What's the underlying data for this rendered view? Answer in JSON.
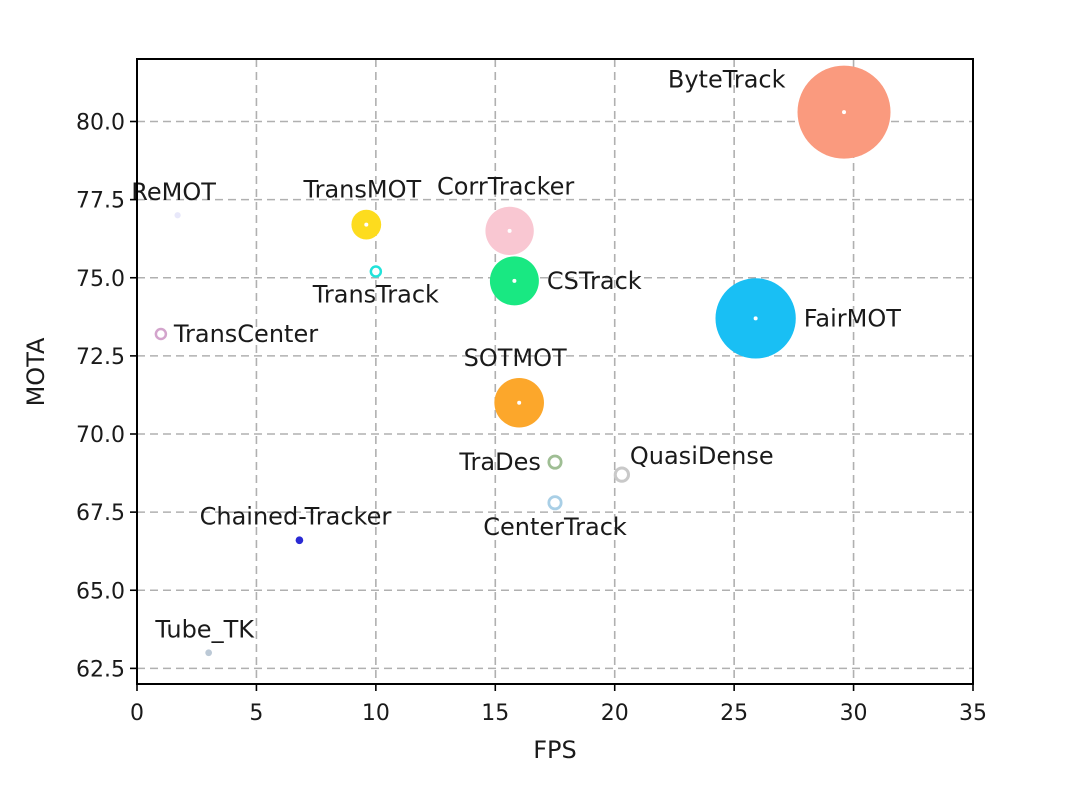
{
  "chart_data": {
    "type": "scatter",
    "xlabel": "FPS",
    "ylabel": "MOTA",
    "xlim": [
      0,
      35
    ],
    "ylim": [
      62.0,
      82.0
    ],
    "x_ticks": [
      "0",
      "5",
      "10",
      "15",
      "20",
      "25",
      "30",
      "35"
    ],
    "y_ticks": [
      "62.5",
      "65.0",
      "67.5",
      "70.0",
      "72.5",
      "75.0",
      "77.5",
      "80.0"
    ],
    "grid": true,
    "points": [
      {
        "name": "ByteTrack",
        "x": 29.6,
        "y": 80.3,
        "size": 30,
        "color": "#fa9a7e",
        "ring": false,
        "label_pos": "upper-left"
      },
      {
        "name": "ReMOT",
        "x": 1.7,
        "y": 77.0,
        "size": 1,
        "color": "#e8e8fa",
        "ring": false,
        "label_pos": "above"
      },
      {
        "name": "TransMOT",
        "x": 9.6,
        "y": 76.7,
        "size": 9.6,
        "color": "#fddc1e",
        "ring": false,
        "label_pos": "above"
      },
      {
        "name": "CorrTracker",
        "x": 15.6,
        "y": 76.5,
        "size": 15.6,
        "color": "#f9c7d2",
        "ring": false,
        "label_pos": "above"
      },
      {
        "name": "TransTrack",
        "x": 10.0,
        "y": 75.2,
        "size": 10,
        "color": "#21e3da",
        "ring": true,
        "label_pos": "below"
      },
      {
        "name": "CSTrack",
        "x": 15.8,
        "y": 74.9,
        "size": 15.8,
        "color": "#19e882",
        "ring": false,
        "label_pos": "right"
      },
      {
        "name": "FairMOT",
        "x": 25.9,
        "y": 73.7,
        "size": 25.9,
        "color": "#19bff4",
        "ring": false,
        "label_pos": "right"
      },
      {
        "name": "TransCenter",
        "x": 1.0,
        "y": 73.2,
        "size": 1,
        "color": "#d3a4cc",
        "ring": true,
        "label_pos": "right"
      },
      {
        "name": "SOTMOT",
        "x": 16.0,
        "y": 71.0,
        "size": 16,
        "color": "#fca72b",
        "ring": false,
        "label_pos": "above"
      },
      {
        "name": "TraDes",
        "x": 17.5,
        "y": 69.1,
        "size": 17.5,
        "color": "#9fbe94",
        "ring": true,
        "label_pos": "left"
      },
      {
        "name": "QuasiDense",
        "x": 20.3,
        "y": 68.7,
        "size": 20.3,
        "color": "#c9c9c9",
        "ring": true,
        "label_pos": "upper-right"
      },
      {
        "name": "CenterTrack",
        "x": 17.5,
        "y": 67.8,
        "size": 17.5,
        "color": "#a9cfe6",
        "ring": true,
        "label_pos": "below"
      },
      {
        "name": "Chained-Tracker",
        "x": 6.8,
        "y": 66.6,
        "size": 6.8,
        "color": "#2a2ad4",
        "ring": false,
        "label_pos": "above"
      },
      {
        "name": "Tube_TK",
        "x": 3.0,
        "y": 63.0,
        "size": 3,
        "color": "#bcc9d6",
        "ring": false,
        "label_pos": "above"
      }
    ]
  }
}
